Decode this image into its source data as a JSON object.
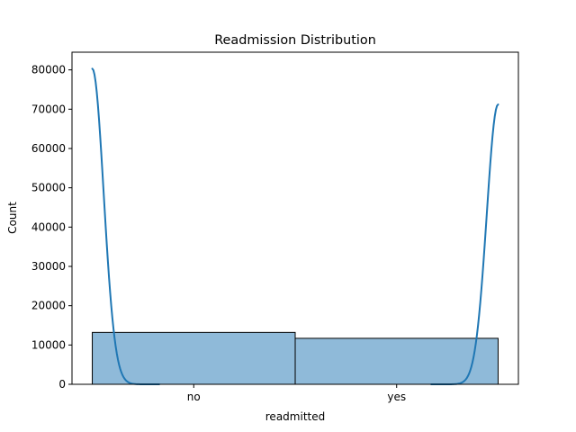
{
  "chart_data": {
    "type": "bar",
    "title": "Readmission Distribution",
    "xlabel": "readmitted",
    "ylabel": "Count",
    "categories": [
      "no",
      "yes"
    ],
    "values": [
      13200,
      11700
    ],
    "ylim": [
      0,
      84500
    ],
    "yticks": [
      0,
      10000,
      20000,
      30000,
      40000,
      50000,
      60000,
      70000,
      80000
    ],
    "grid": false,
    "bar_color": "#8fbad9",
    "bar_edge_color": "#000000",
    "kde_color": "#1f77b4",
    "kde": {
      "peaks": [
        {
          "category": "no",
          "peak": 80300,
          "side": "right"
        },
        {
          "category": "yes",
          "peak": 71200,
          "side": "left"
        }
      ]
    }
  }
}
